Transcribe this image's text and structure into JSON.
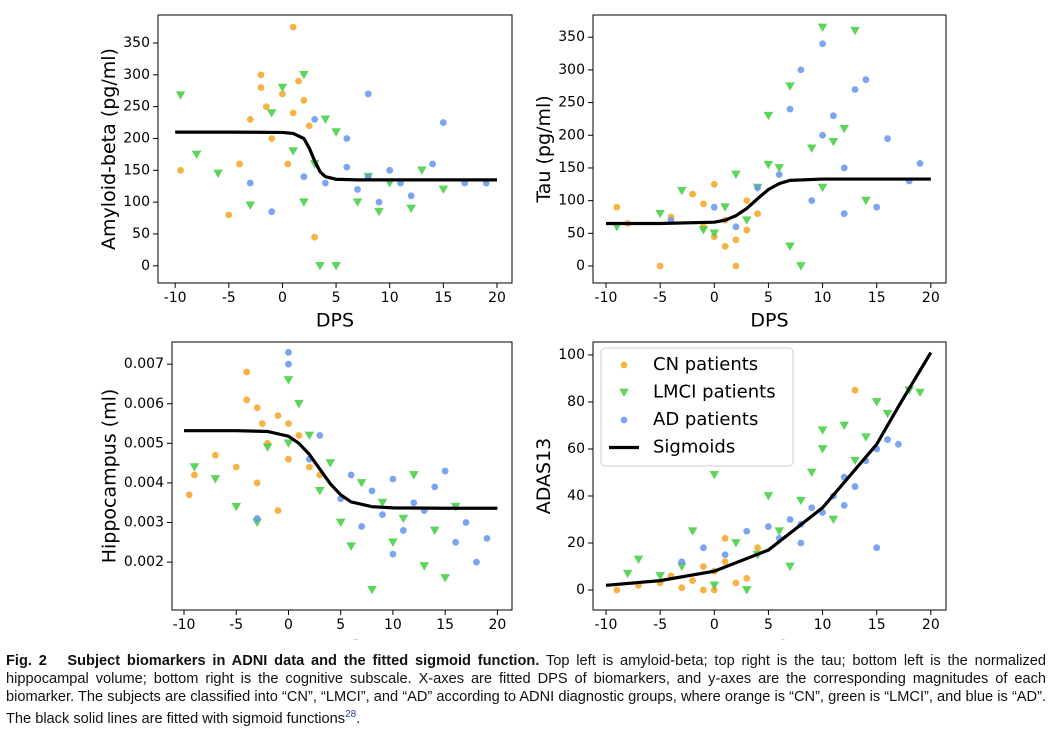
{
  "chart_data": [
    {
      "type": "scatter",
      "xlabel": "DPS",
      "ylabel": "Amyloid-beta (pg/ml)",
      "xlim": [
        -11.6,
        21.4
      ],
      "ylim": [
        -27,
        394
      ],
      "xticks": [
        -10,
        -5,
        0,
        5,
        10,
        15,
        20
      ],
      "yticks": [
        0,
        50,
        100,
        150,
        200,
        250,
        300,
        350
      ],
      "series": [
        {
          "color": "#f5a623",
          "style": "circle",
          "x": [
            -9.5,
            -5,
            -4,
            -3,
            -2,
            -1.5,
            -1,
            0,
            0.5,
            1,
            1.5,
            2,
            1,
            3,
            2.5,
            -2
          ],
          "values": [
            150,
            80,
            160,
            230,
            280,
            250,
            200,
            270,
            160,
            240,
            290,
            260,
            375,
            45,
            220,
            300
          ]
        },
        {
          "color": "#3ecf3e",
          "style": "triangle-down",
          "x": [
            -9.5,
            -8,
            -6,
            -3,
            -1,
            0,
            1,
            2,
            2,
            3,
            4,
            3.5,
            5,
            7,
            9,
            12,
            15,
            13,
            8,
            5,
            10
          ],
          "values": [
            268,
            175,
            145,
            95,
            240,
            280,
            180,
            300,
            100,
            160,
            230,
            0,
            210,
            100,
            85,
            90,
            120,
            150,
            140,
            0,
            130
          ]
        },
        {
          "color": "#6495ed",
          "style": "circle",
          "x": [
            -3,
            -1,
            2,
            4,
            6,
            7,
            8,
            9,
            10,
            11,
            12,
            14,
            15,
            17,
            19,
            6,
            8,
            3
          ],
          "values": [
            130,
            85,
            140,
            130,
            155,
            120,
            270,
            100,
            150,
            130,
            110,
            160,
            225,
            130,
            130,
            200,
            140,
            230
          ]
        },
        {
          "color": "#000000",
          "style": "line",
          "x": [
            -10,
            -5,
            0,
            1,
            2,
            2.5,
            3,
            3.5,
            4,
            5,
            7,
            10,
            15,
            20
          ],
          "values": [
            210,
            210,
            209.5,
            208,
            200,
            185,
            165,
            148,
            140,
            136,
            135,
            135,
            135,
            135
          ]
        }
      ]
    },
    {
      "type": "scatter",
      "xlabel": "DPS",
      "ylabel": "Tau (pg/ml)",
      "xlim": [
        -11.2,
        21.4
      ],
      "ylim": [
        -26,
        384
      ],
      "xticks": [
        -10,
        -5,
        0,
        5,
        10,
        15,
        20
      ],
      "yticks": [
        0,
        50,
        100,
        150,
        200,
        250,
        300,
        350
      ],
      "series": [
        {
          "color": "#f5a623",
          "style": "circle",
          "x": [
            -9,
            -8,
            -5,
            -4,
            -2,
            -1,
            0,
            0,
            1,
            2,
            2,
            3,
            4,
            1,
            -1,
            3
          ],
          "values": [
            90,
            65,
            0,
            75,
            110,
            60,
            45,
            125,
            70,
            40,
            0,
            55,
            80,
            30,
            95,
            100
          ]
        },
        {
          "color": "#3ecf3e",
          "style": "triangle-down",
          "x": [
            -9,
            -5,
            -3,
            -1,
            0,
            1,
            2,
            3,
            4,
            5,
            5,
            7,
            7,
            9,
            10,
            10,
            11,
            12,
            13,
            14,
            8,
            6
          ],
          "values": [
            60,
            80,
            115,
            55,
            50,
            90,
            140,
            70,
            120,
            155,
            230,
            275,
            30,
            180,
            120,
            365,
            190,
            210,
            360,
            100,
            0,
            150
          ]
        },
        {
          "color": "#6495ed",
          "style": "circle",
          "x": [
            -4,
            0,
            2,
            4,
            6,
            7,
            8,
            9,
            10,
            10,
            11,
            12,
            13,
            14,
            15,
            16,
            18,
            19,
            12
          ],
          "values": [
            70,
            90,
            60,
            120,
            140,
            240,
            300,
            100,
            200,
            340,
            230,
            150,
            270,
            285,
            90,
            195,
            130,
            157,
            80
          ]
        },
        {
          "color": "#000000",
          "style": "line",
          "x": [
            -10,
            -5,
            0,
            1,
            2,
            3,
            4,
            5,
            6,
            7,
            10,
            15,
            20
          ],
          "values": [
            65,
            65,
            67,
            70,
            77,
            88,
            103,
            117,
            126,
            131,
            133,
            133,
            133
          ]
        }
      ]
    },
    {
      "type": "scatter",
      "xlabel": "DPS",
      "ylabel": "Hippocampus (ml)",
      "xlim": [
        -11.15,
        21.4
      ],
      "ylim": [
        0.00079,
        0.00756
      ],
      "xticks": [
        -10,
        -5,
        0,
        5,
        10,
        15,
        20
      ],
      "yticks": [
        0.002,
        0.003,
        0.004,
        0.005,
        0.006,
        0.007
      ],
      "series": [
        {
          "color": "#f5a623",
          "style": "circle",
          "x": [
            -9.5,
            -9,
            -7,
            -5,
            -4,
            -4,
            -3,
            -2.5,
            -2,
            -1,
            0,
            0,
            1,
            2,
            -3,
            3,
            -1
          ],
          "values": [
            0.0037,
            0.0042,
            0.0047,
            0.0044,
            0.0068,
            0.0061,
            0.0059,
            0.0055,
            0.005,
            0.0057,
            0.0055,
            0.0046,
            0.0052,
            0.0044,
            0.004,
            0.0042,
            0.0033
          ]
        },
        {
          "color": "#3ecf3e",
          "style": "triangle-down",
          "x": [
            -9,
            -7,
            -5,
            -3,
            -2,
            0,
            0,
            1,
            2,
            3,
            4,
            5,
            6,
            7,
            8,
            9,
            10,
            11,
            13,
            14,
            15,
            16,
            12
          ],
          "values": [
            0.0044,
            0.0041,
            0.0034,
            0.003,
            0.0049,
            0.005,
            0.0066,
            0.006,
            0.0052,
            0.0038,
            0.0045,
            0.003,
            0.0024,
            0.004,
            0.0013,
            0.0035,
            0.0025,
            0.0031,
            0.0019,
            0.0028,
            0.0016,
            0.0034,
            0.0042
          ]
        },
        {
          "color": "#6495ed",
          "style": "circle",
          "x": [
            -3,
            0,
            0,
            2,
            3,
            5,
            6,
            7,
            8,
            9,
            10,
            11,
            12,
            13,
            14,
            15,
            16,
            17,
            18,
            19,
            10
          ],
          "values": [
            0.0031,
            0.0073,
            0.007,
            0.0046,
            0.0052,
            0.0036,
            0.0042,
            0.0029,
            0.0038,
            0.0032,
            0.0041,
            0.0028,
            0.0035,
            0.0033,
            0.0039,
            0.0043,
            0.0025,
            0.003,
            0.002,
            0.0026,
            0.0022
          ]
        },
        {
          "color": "#000000",
          "style": "line",
          "x": [
            -10,
            -5,
            -2,
            0,
            1,
            2,
            3,
            4,
            5,
            6,
            8,
            10,
            15,
            20
          ],
          "values": [
            0.00532,
            0.00532,
            0.0053,
            0.00518,
            0.005,
            0.00472,
            0.00435,
            0.00398,
            0.0037,
            0.00352,
            0.0034,
            0.00337,
            0.00336,
            0.00336
          ]
        }
      ]
    },
    {
      "type": "scatter",
      "xlabel": "DPS",
      "ylabel": "ADAS13",
      "xlim": [
        -11.2,
        21.4
      ],
      "ylim": [
        -8.5,
        105.5
      ],
      "xticks": [
        -10,
        -5,
        0,
        5,
        10,
        15,
        20
      ],
      "yticks": [
        0,
        20,
        40,
        60,
        80,
        100
      ],
      "legend": "upper left",
      "series": [
        {
          "name": "CN patients",
          "color": "#f5a623",
          "style": "circle",
          "x": [
            -9,
            -7,
            -5,
            -4,
            -3,
            -2,
            -1,
            0,
            0,
            1,
            2,
            3,
            -1,
            13,
            4,
            1
          ],
          "values": [
            0,
            2,
            3,
            6,
            1,
            4,
            10,
            8,
            0,
            12,
            3,
            5,
            0,
            85,
            18,
            22
          ]
        },
        {
          "name": "LMCI patients",
          "color": "#3ecf3e",
          "style": "triangle-down",
          "x": [
            -8,
            -7,
            -5,
            -3,
            -2,
            0,
            0,
            2,
            3,
            4,
            5,
            6,
            7,
            8,
            9,
            10,
            11,
            12,
            13,
            14,
            15,
            16,
            18,
            19,
            10
          ],
          "values": [
            7,
            13,
            6,
            10,
            25,
            49,
            2,
            20,
            0,
            15,
            40,
            25,
            10,
            38,
            50,
            60,
            30,
            70,
            55,
            65,
            80,
            75,
            85,
            84,
            68
          ]
        },
        {
          "name": "AD patients",
          "color": "#6495ed",
          "style": "circle",
          "x": [
            -3,
            -1,
            1,
            3,
            5,
            6,
            7,
            8,
            9,
            10,
            11,
            12,
            13,
            14,
            15,
            15,
            16,
            17,
            12,
            8
          ],
          "values": [
            12,
            18,
            15,
            25,
            27,
            22,
            30,
            28,
            35,
            33,
            40,
            48,
            44,
            55,
            18,
            60,
            64,
            62,
            36,
            20
          ]
        },
        {
          "name": "Sigmoids",
          "color": "#000000",
          "style": "line",
          "x": [
            -10,
            -5,
            0,
            5,
            10,
            15,
            17,
            20
          ],
          "values": [
            2,
            4,
            8,
            17,
            35,
            62,
            78,
            101
          ]
        }
      ]
    }
  ],
  "caption": {
    "label": "Fig. 2",
    "title": "Subject biomarkers in ADNI data and the fitted sigmoid function.",
    "text": "Top left is amyloid-beta; top right is the tau; bottom left is the normalized hippocampal volume; bottom right is the cognitive subscale. X-axes are fitted DPS of biomarkers, and y-axes are the corresponding magnitudes of each biomarker. The subjects are classified into “CN”, “LMCI”, and “AD” according to ADNI diagnostic groups, where orange is “CN”, green is “LMCI”, and blue is “AD”. The black solid lines are fitted with sigmoid functions",
    "ref": "28",
    "end": "."
  }
}
